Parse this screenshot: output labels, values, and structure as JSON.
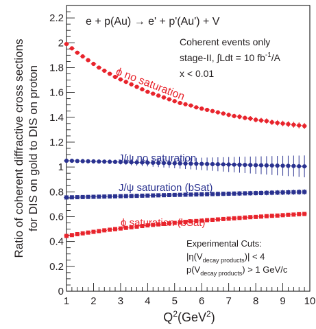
{
  "chart_data": {
    "type": "scatter",
    "process": "e + p(Au) → e' + p'(Au') + V",
    "ylabel_line1": "Ratio of coherent diffractive cross sections",
    "ylabel_line2": "for DIS on gold to DIS on proton",
    "xlabel_base": "Q",
    "xlabel_sup": "2",
    "xlabel_unit_open": "(GeV",
    "xlabel_unit_sup": "2",
    "xlabel_unit_close": ")",
    "xlim": [
      1,
      10
    ],
    "ylim": [
      0,
      2.3
    ],
    "x_ticks": [
      1,
      2,
      3,
      4,
      5,
      6,
      7,
      8,
      9,
      10
    ],
    "y_ticks": [
      0,
      0.2,
      0.4,
      0.6,
      0.8,
      1,
      1.2,
      1.4,
      1.6,
      1.8,
      2,
      2.2
    ],
    "grid": false,
    "info": {
      "line1": "Coherent events only",
      "line2_pre": "stage-II, ∫Ldt = 10 fb",
      "line2_sup": "-1",
      "line2_post": "/A",
      "line3": "x < 0.01"
    },
    "cuts": {
      "title": "Experimental Cuts:",
      "line1_pre": "|η(V",
      "line1_sub": "decay products",
      "line1_post": ")| < 4",
      "line2_pre": "p(V",
      "line2_sub": "decay products",
      "line2_post": ") > 1 GeV/c"
    },
    "series": [
      {
        "name": "ϕ no saturation",
        "color": "#e8242c",
        "marker": "circle",
        "x": [
          1.0,
          1.2,
          1.4,
          1.6,
          1.8,
          2.0,
          2.2,
          2.4,
          2.6,
          2.8,
          3.0,
          3.2,
          3.4,
          3.6,
          3.8,
          4.0,
          4.2,
          4.4,
          4.6,
          4.8,
          5.0,
          5.2,
          5.4,
          5.6,
          5.8,
          6.0,
          6.2,
          6.4,
          6.6,
          6.8,
          7.0,
          7.2,
          7.4,
          7.6,
          7.8,
          8.0,
          8.2,
          8.4,
          8.6,
          8.8,
          9.0,
          9.2,
          9.4,
          9.6,
          9.8
        ],
        "y": [
          1.99,
          1.955,
          1.92,
          1.89,
          1.86,
          1.83,
          1.8,
          1.775,
          1.75,
          1.725,
          1.705,
          1.685,
          1.665,
          1.645,
          1.625,
          1.605,
          1.59,
          1.575,
          1.56,
          1.545,
          1.53,
          1.515,
          1.505,
          1.495,
          1.48,
          1.47,
          1.46,
          1.45,
          1.44,
          1.43,
          1.42,
          1.41,
          1.405,
          1.395,
          1.39,
          1.38,
          1.375,
          1.37,
          1.36,
          1.355,
          1.35,
          1.345,
          1.34,
          1.335,
          1.33
        ],
        "err": [
          0.01,
          0.01,
          0.01,
          0.01,
          0.01,
          0.01,
          0.01,
          0.01,
          0.01,
          0.01,
          0.01,
          0.012,
          0.012,
          0.012,
          0.012,
          0.012,
          0.013,
          0.013,
          0.013,
          0.014,
          0.014,
          0.014,
          0.015,
          0.015,
          0.015,
          0.016,
          0.016,
          0.017,
          0.017,
          0.018,
          0.018,
          0.019,
          0.019,
          0.02,
          0.02,
          0.021,
          0.021,
          0.022,
          0.022,
          0.023,
          0.023,
          0.024,
          0.024,
          0.025,
          0.025
        ]
      },
      {
        "name": "J/ψ no saturation",
        "color": "#2a3290",
        "marker": "circle",
        "x": [
          1.0,
          1.2,
          1.4,
          1.6,
          1.8,
          2.0,
          2.2,
          2.4,
          2.6,
          2.8,
          3.0,
          3.2,
          3.4,
          3.6,
          3.8,
          4.0,
          4.2,
          4.4,
          4.6,
          4.8,
          5.0,
          5.2,
          5.4,
          5.6,
          5.8,
          6.0,
          6.2,
          6.4,
          6.6,
          6.8,
          7.0,
          7.2,
          7.4,
          7.6,
          7.8,
          8.0,
          8.2,
          8.4,
          8.6,
          8.8,
          9.0,
          9.2,
          9.4,
          9.6,
          9.8
        ],
        "y": [
          1.05,
          1.05,
          1.048,
          1.047,
          1.046,
          1.045,
          1.044,
          1.043,
          1.042,
          1.041,
          1.04,
          1.039,
          1.038,
          1.037,
          1.036,
          1.035,
          1.034,
          1.033,
          1.032,
          1.031,
          1.03,
          1.029,
          1.028,
          1.027,
          1.026,
          1.025,
          1.024,
          1.023,
          1.022,
          1.021,
          1.02,
          1.019,
          1.018,
          1.017,
          1.016,
          1.015,
          1.014,
          1.013,
          1.012,
          1.011,
          1.01,
          1.009,
          1.008,
          1.006,
          1.005
        ],
        "err": [
          0.01,
          0.01,
          0.012,
          0.012,
          0.014,
          0.014,
          0.016,
          0.016,
          0.018,
          0.018,
          0.02,
          0.022,
          0.024,
          0.026,
          0.028,
          0.03,
          0.032,
          0.034,
          0.036,
          0.038,
          0.04,
          0.042,
          0.044,
          0.046,
          0.048,
          0.05,
          0.052,
          0.054,
          0.056,
          0.058,
          0.06,
          0.062,
          0.064,
          0.066,
          0.068,
          0.07,
          0.072,
          0.074,
          0.076,
          0.078,
          0.08,
          0.082,
          0.084,
          0.086,
          0.088
        ]
      },
      {
        "name": "J/ψ saturation (bSat)",
        "color": "#2a3290",
        "marker": "square",
        "x": [
          1.0,
          1.2,
          1.4,
          1.6,
          1.8,
          2.0,
          2.2,
          2.4,
          2.6,
          2.8,
          3.0,
          3.2,
          3.4,
          3.6,
          3.8,
          4.0,
          4.2,
          4.4,
          4.6,
          4.8,
          5.0,
          5.2,
          5.4,
          5.6,
          5.8,
          6.0,
          6.2,
          6.4,
          6.6,
          6.8,
          7.0,
          7.2,
          7.4,
          7.6,
          7.8,
          8.0,
          8.2,
          8.4,
          8.6,
          8.8,
          9.0,
          9.2,
          9.4,
          9.6,
          9.8
        ],
        "y": [
          0.755,
          0.756,
          0.757,
          0.758,
          0.759,
          0.76,
          0.761,
          0.762,
          0.763,
          0.764,
          0.765,
          0.766,
          0.767,
          0.768,
          0.769,
          0.77,
          0.771,
          0.772,
          0.773,
          0.774,
          0.775,
          0.776,
          0.777,
          0.778,
          0.779,
          0.78,
          0.781,
          0.782,
          0.783,
          0.784,
          0.785,
          0.786,
          0.787,
          0.788,
          0.789,
          0.79,
          0.791,
          0.792,
          0.793,
          0.794,
          0.795,
          0.796,
          0.797,
          0.798,
          0.799
        ],
        "err": [
          0.008,
          0.008,
          0.008,
          0.008,
          0.009,
          0.009,
          0.009,
          0.01,
          0.01,
          0.01,
          0.011,
          0.011,
          0.011,
          0.012,
          0.012,
          0.012,
          0.013,
          0.013,
          0.013,
          0.014,
          0.014,
          0.014,
          0.015,
          0.015,
          0.015,
          0.016,
          0.016,
          0.016,
          0.017,
          0.017,
          0.017,
          0.018,
          0.018,
          0.018,
          0.019,
          0.019,
          0.019,
          0.02,
          0.02,
          0.02,
          0.021,
          0.021,
          0.021,
          0.022,
          0.022
        ]
      },
      {
        "name": "ϕ saturation (bSat)",
        "color": "#e8242c",
        "marker": "square",
        "x": [
          1.0,
          1.2,
          1.4,
          1.6,
          1.8,
          2.0,
          2.2,
          2.4,
          2.6,
          2.8,
          3.0,
          3.2,
          3.4,
          3.6,
          3.8,
          4.0,
          4.2,
          4.4,
          4.6,
          4.8,
          5.0,
          5.2,
          5.4,
          5.6,
          5.8,
          6.0,
          6.2,
          6.4,
          6.6,
          6.8,
          7.0,
          7.2,
          7.4,
          7.6,
          7.8,
          8.0,
          8.2,
          8.4,
          8.6,
          8.8,
          9.0,
          9.2,
          9.4,
          9.6,
          9.8
        ],
        "y": [
          0.445,
          0.452,
          0.459,
          0.466,
          0.472,
          0.478,
          0.484,
          0.49,
          0.495,
          0.5,
          0.505,
          0.51,
          0.515,
          0.52,
          0.525,
          0.53,
          0.534,
          0.538,
          0.542,
          0.546,
          0.55,
          0.554,
          0.558,
          0.562,
          0.565,
          0.568,
          0.572,
          0.575,
          0.578,
          0.581,
          0.584,
          0.587,
          0.59,
          0.593,
          0.596,
          0.598,
          0.601,
          0.604,
          0.607,
          0.609,
          0.612,
          0.615,
          0.617,
          0.62,
          0.622
        ],
        "err": [
          0.006,
          0.006,
          0.006,
          0.006,
          0.006,
          0.006,
          0.006,
          0.006,
          0.006,
          0.006,
          0.006,
          0.006,
          0.006,
          0.006,
          0.006,
          0.007,
          0.007,
          0.007,
          0.007,
          0.007,
          0.007,
          0.007,
          0.007,
          0.007,
          0.007,
          0.008,
          0.008,
          0.008,
          0.008,
          0.008,
          0.008,
          0.008,
          0.008,
          0.009,
          0.009,
          0.009,
          0.009,
          0.009,
          0.009,
          0.009,
          0.01,
          0.01,
          0.01,
          0.01,
          0.01
        ]
      }
    ],
    "labels": {
      "phi_nosat": "ϕ no saturation",
      "jpsi_nosat": "J/ψ no saturation",
      "jpsi_sat": "J/ψ saturation (bSat)",
      "phi_sat": "ϕ saturation (bSat)"
    }
  }
}
